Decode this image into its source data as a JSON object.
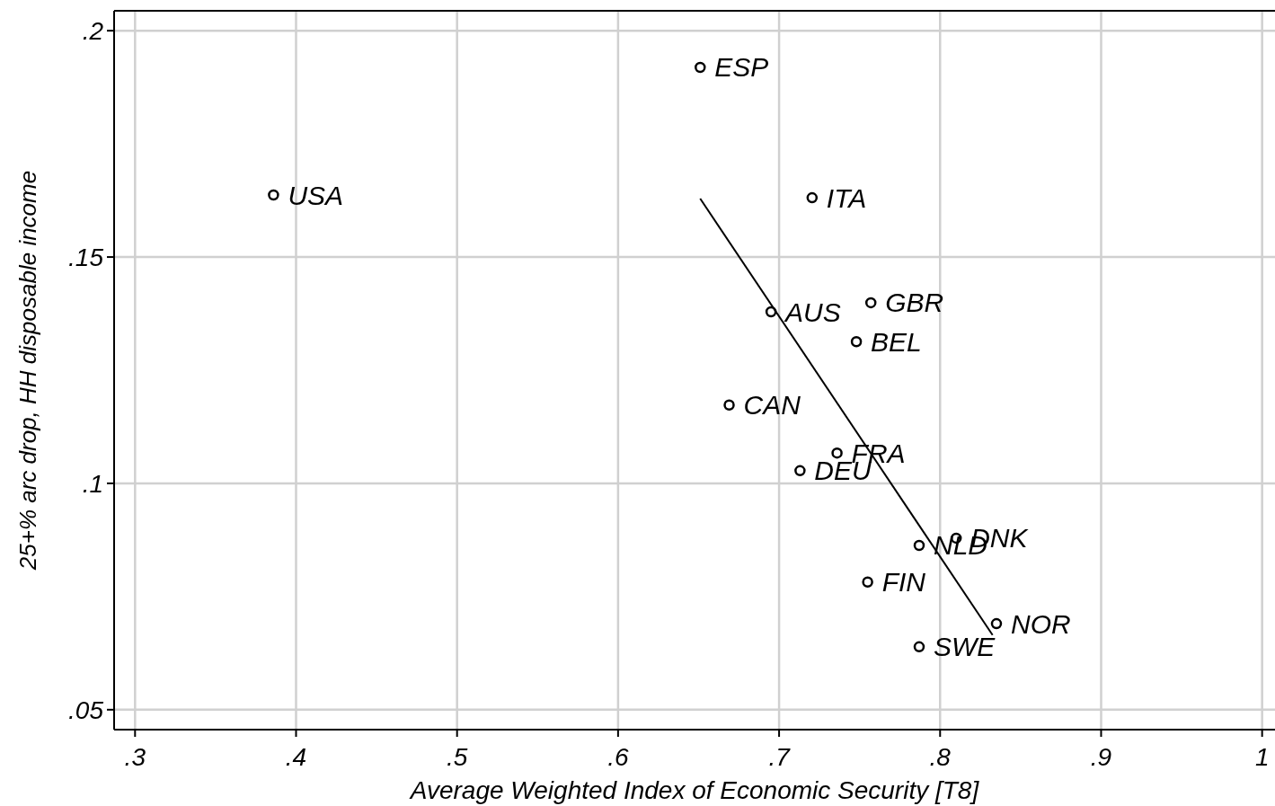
{
  "chart_data": {
    "type": "scatter",
    "xlabel": "Average Weighted Index of Economic Security [T8]",
    "ylabel": "25+% arc drop, HH disposable income",
    "xlim": [
      0.287,
      1.008
    ],
    "ylim": [
      0.0456,
      0.2044
    ],
    "xticks": [
      {
        "value": 0.3,
        "label": ".3"
      },
      {
        "value": 0.4,
        "label": ".4"
      },
      {
        "value": 0.5,
        "label": ".5"
      },
      {
        "value": 0.6,
        "label": ".6"
      },
      {
        "value": 0.7,
        "label": ".7"
      },
      {
        "value": 0.8,
        "label": ".8"
      },
      {
        "value": 0.9,
        "label": ".9"
      },
      1
    ],
    "yticks": [
      {
        "value": 0.05,
        "label": ".05"
      },
      {
        "value": 0.1,
        "label": ".1"
      },
      {
        "value": 0.15,
        "label": ".15"
      },
      {
        "value": 0.2,
        "label": ".2"
      }
    ],
    "grid": true,
    "marker": "circle",
    "series": [
      {
        "color": "#000000",
        "x": [
          0.386,
          0.651,
          0.7205,
          0.695,
          0.757,
          0.748,
          0.669,
          0.736,
          0.713,
          0.787,
          0.81,
          0.755,
          0.835,
          0.787
        ],
        "values": [
          0.1637,
          0.1919,
          0.1631,
          0.1379,
          0.1399,
          0.1313,
          0.1173,
          0.1067,
          0.1028,
          0.0863,
          0.0879,
          0.0782,
          0.069,
          0.0639
        ]
      },
      {
        "type": "line",
        "color": "#000000",
        "marker": "none",
        "x": [
          0.651,
          0.8326
        ],
        "values": [
          0.1629,
          0.0665
        ]
      }
    ],
    "annotations": [
      {
        "text": "USA",
        "x": 0.386,
        "y": 0.1637
      },
      {
        "text": "ESP",
        "x": 0.651,
        "y": 0.1919
      },
      {
        "text": "ITA",
        "x": 0.7205,
        "y": 0.1631
      },
      {
        "text": "AUS",
        "x": 0.695,
        "y": 0.1379
      },
      {
        "text": "GBR",
        "x": 0.757,
        "y": 0.1399
      },
      {
        "text": "BEL",
        "x": 0.748,
        "y": 0.1313
      },
      {
        "text": "CAN",
        "x": 0.669,
        "y": 0.1173
      },
      {
        "text": "FRA",
        "x": 0.736,
        "y": 0.1067
      },
      {
        "text": "DEU",
        "x": 0.713,
        "y": 0.1028
      },
      {
        "text": "NLD",
        "x": 0.787,
        "y": 0.0863
      },
      {
        "text": "DNK",
        "x": 0.81,
        "y": 0.0879
      },
      {
        "text": "FIN",
        "x": 0.755,
        "y": 0.0782
      },
      {
        "text": "NOR",
        "x": 0.835,
        "y": 0.069
      },
      {
        "text": "SWE",
        "x": 0.787,
        "y": 0.0639
      }
    ]
  }
}
